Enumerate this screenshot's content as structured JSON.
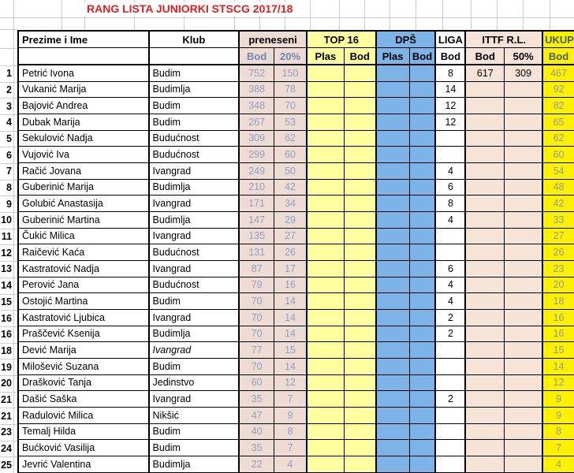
{
  "title": "RANG LISTA JUNIORKI STSCG 2017/18",
  "columns": {
    "name": "Prezime i Ime",
    "club": "Klub",
    "groups": [
      {
        "label": "preneseni",
        "subs": [
          "Bod",
          "20%"
        ]
      },
      {
        "label": "TOP 16",
        "subs": [
          "Plas",
          "Bod"
        ]
      },
      {
        "label": "DPŠ",
        "subs": [
          "Plas",
          "Bod"
        ]
      },
      {
        "label": "LIGA",
        "subs": [
          "Bod"
        ]
      },
      {
        "label": "ITTF R.L.",
        "subs": [
          "Bod",
          "50%"
        ]
      },
      {
        "label": "UKUPNO",
        "subs": [
          "Bod"
        ]
      }
    ]
  },
  "colors": {
    "title_red": "#dc1e1e",
    "preneseni_bg": "#eedbd3",
    "top16_bg": "#ffffa0",
    "dps_bg": "#7db4e8",
    "liga_bg": "#ffffff",
    "ittf_bg": "#f6e3d7",
    "ukupno_bg": "#fdf001",
    "preneseni_text": "#8da2c4",
    "ukupno_text": "#8d9ba8",
    "grid_faint": "#c9cdd1",
    "table_border": "#000000"
  },
  "rows": [
    {
      "rank": "1",
      "name": "Petrić Ivona",
      "club": "Budim",
      "club_italic": false,
      "pren_bod": "752",
      "pren_20": "150",
      "top_plas": "",
      "top_bod": "",
      "dps_plas": "",
      "dps_bod": "",
      "liga": "8",
      "ittf_bod": "617",
      "ittf_50": "309",
      "ukupno": "467"
    },
    {
      "rank": "2",
      "name": "Vukanić Marija",
      "club": "Budimlja",
      "club_italic": false,
      "pren_bod": "388",
      "pren_20": "78",
      "top_plas": "",
      "top_bod": "",
      "dps_plas": "",
      "dps_bod": "",
      "liga": "14",
      "ittf_bod": "",
      "ittf_50": "",
      "ukupno": "92"
    },
    {
      "rank": "3",
      "name": "Bajović Andrea",
      "club": "Budim",
      "club_italic": false,
      "pren_bod": "348",
      "pren_20": "70",
      "top_plas": "",
      "top_bod": "",
      "dps_plas": "",
      "dps_bod": "",
      "liga": "12",
      "ittf_bod": "",
      "ittf_50": "",
      "ukupno": "82"
    },
    {
      "rank": "4",
      "name": "Dubak Marija",
      "club": "Budim",
      "club_italic": false,
      "pren_bod": "267",
      "pren_20": "53",
      "top_plas": "",
      "top_bod": "",
      "dps_plas": "",
      "dps_bod": "",
      "liga": "12",
      "ittf_bod": "",
      "ittf_50": "",
      "ukupno": "65"
    },
    {
      "rank": "5",
      "name": "Sekulović Nadja",
      "club": "Budućnost",
      "club_italic": false,
      "pren_bod": "309",
      "pren_20": "62",
      "top_plas": "",
      "top_bod": "",
      "dps_plas": "",
      "dps_bod": "",
      "liga": "",
      "ittf_bod": "",
      "ittf_50": "",
      "ukupno": "62"
    },
    {
      "rank": "6",
      "name": "Vujović Iva",
      "club": "Budućnost",
      "club_italic": false,
      "pren_bod": "299",
      "pren_20": "60",
      "top_plas": "",
      "top_bod": "",
      "dps_plas": "",
      "dps_bod": "",
      "liga": "",
      "ittf_bod": "",
      "ittf_50": "",
      "ukupno": "60"
    },
    {
      "rank": "7",
      "name": "Račić Jovana",
      "club": "Ivangrad",
      "club_italic": false,
      "pren_bod": "249",
      "pren_20": "50",
      "top_plas": "",
      "top_bod": "",
      "dps_plas": "",
      "dps_bod": "",
      "liga": "4",
      "ittf_bod": "",
      "ittf_50": "",
      "ukupno": "54"
    },
    {
      "rank": "8",
      "name": "Guberinić Marija",
      "club": "Budimlja",
      "club_italic": false,
      "pren_bod": "210",
      "pren_20": "42",
      "top_plas": "",
      "top_bod": "",
      "dps_plas": "",
      "dps_bod": "",
      "liga": "6",
      "ittf_bod": "",
      "ittf_50": "",
      "ukupno": "48"
    },
    {
      "rank": "9",
      "name": "Golubić Anastasija",
      "club": "Ivangrad",
      "club_italic": false,
      "pren_bod": "171",
      "pren_20": "34",
      "top_plas": "",
      "top_bod": "",
      "dps_plas": "",
      "dps_bod": "",
      "liga": "8",
      "ittf_bod": "",
      "ittf_50": "",
      "ukupno": "42"
    },
    {
      "rank": "10",
      "name": "Guberinić Martina",
      "club": "Budimlja",
      "club_italic": false,
      "pren_bod": "147",
      "pren_20": "29",
      "top_plas": "",
      "top_bod": "",
      "dps_plas": "",
      "dps_bod": "",
      "liga": "4",
      "ittf_bod": "",
      "ittf_50": "",
      "ukupno": "33"
    },
    {
      "rank": "11",
      "name": "Čukić Milica",
      "club": "Ivangrad",
      "club_italic": false,
      "pren_bod": "135",
      "pren_20": "27",
      "top_plas": "",
      "top_bod": "",
      "dps_plas": "",
      "dps_bod": "",
      "liga": "",
      "ittf_bod": "",
      "ittf_50": "",
      "ukupno": "27"
    },
    {
      "rank": "12",
      "name": "Raičević Kaća",
      "club": "Budućnost",
      "club_italic": false,
      "pren_bod": "131",
      "pren_20": "26",
      "top_plas": "",
      "top_bod": "",
      "dps_plas": "",
      "dps_bod": "",
      "liga": "",
      "ittf_bod": "",
      "ittf_50": "",
      "ukupno": "26"
    },
    {
      "rank": "13",
      "name": "Kastratović Nadja",
      "club": "Ivangrad",
      "club_italic": false,
      "pren_bod": "87",
      "pren_20": "17",
      "top_plas": "",
      "top_bod": "",
      "dps_plas": "",
      "dps_bod": "",
      "liga": "6",
      "ittf_bod": "",
      "ittf_50": "",
      "ukupno": "23"
    },
    {
      "rank": "14",
      "name": "Perović Jana",
      "club": "Budućnost",
      "club_italic": false,
      "pren_bod": "79",
      "pren_20": "16",
      "top_plas": "",
      "top_bod": "",
      "dps_plas": "",
      "dps_bod": "",
      "liga": "4",
      "ittf_bod": "",
      "ittf_50": "",
      "ukupno": "20"
    },
    {
      "rank": "15",
      "name": "Ostojić Martina",
      "club": "Budim",
      "club_italic": false,
      "pren_bod": "70",
      "pren_20": "14",
      "top_plas": "",
      "top_bod": "",
      "dps_plas": "",
      "dps_bod": "",
      "liga": "4",
      "ittf_bod": "",
      "ittf_50": "",
      "ukupno": "18"
    },
    {
      "rank": "16",
      "name": "Kastratović Ljubica",
      "club": "Ivangrad",
      "club_italic": false,
      "pren_bod": "70",
      "pren_20": "14",
      "top_plas": "",
      "top_bod": "",
      "dps_plas": "",
      "dps_bod": "",
      "liga": "2",
      "ittf_bod": "",
      "ittf_50": "",
      "ukupno": "16"
    },
    {
      "rank": "16",
      "name": "Praščević Ksenija",
      "club": "Budimlja",
      "club_italic": false,
      "pren_bod": "70",
      "pren_20": "14",
      "top_plas": "",
      "top_bod": "",
      "dps_plas": "",
      "dps_bod": "",
      "liga": "2",
      "ittf_bod": "",
      "ittf_50": "",
      "ukupno": "16"
    },
    {
      "rank": "18",
      "name": "Dević Marija",
      "club": "Ivangrad",
      "club_italic": true,
      "pren_bod": "77",
      "pren_20": "15",
      "top_plas": "",
      "top_bod": "",
      "dps_plas": "",
      "dps_bod": "",
      "liga": "",
      "ittf_bod": "",
      "ittf_50": "",
      "ukupno": "15"
    },
    {
      "rank": "19",
      "name": "Milošević Suzana",
      "club": "Budim",
      "club_italic": false,
      "pren_bod": "70",
      "pren_20": "14",
      "top_plas": "",
      "top_bod": "",
      "dps_plas": "",
      "dps_bod": "",
      "liga": "",
      "ittf_bod": "",
      "ittf_50": "",
      "ukupno": "14"
    },
    {
      "rank": "20",
      "name": "Drašković Tanja",
      "club": "Jedinstvo",
      "club_italic": false,
      "pren_bod": "60",
      "pren_20": "12",
      "top_plas": "",
      "top_bod": "",
      "dps_plas": "",
      "dps_bod": "",
      "liga": "",
      "ittf_bod": "",
      "ittf_50": "",
      "ukupno": "12"
    },
    {
      "rank": "21",
      "name": "Dašić Saška",
      "club": "Ivangrad",
      "club_italic": false,
      "pren_bod": "35",
      "pren_20": "7",
      "top_plas": "",
      "top_bod": "",
      "dps_plas": "",
      "dps_bod": "",
      "liga": "2",
      "ittf_bod": "",
      "ittf_50": "",
      "ukupno": "9"
    },
    {
      "rank": "21",
      "name": "Radulović Milica",
      "club": "Nikšić",
      "club_italic": false,
      "pren_bod": "47",
      "pren_20": "9",
      "top_plas": "",
      "top_bod": "",
      "dps_plas": "",
      "dps_bod": "",
      "liga": "",
      "ittf_bod": "",
      "ittf_50": "",
      "ukupno": "9"
    },
    {
      "rank": "23",
      "name": "Temalj Hilda",
      "club": "Budim",
      "club_italic": false,
      "pren_bod": "40",
      "pren_20": "8",
      "top_plas": "",
      "top_bod": "",
      "dps_plas": "",
      "dps_bod": "",
      "liga": "",
      "ittf_bod": "",
      "ittf_50": "",
      "ukupno": "8"
    },
    {
      "rank": "24",
      "name": "Bućković Vasilija",
      "club": "Budim",
      "club_italic": false,
      "pren_bod": "35",
      "pren_20": "7",
      "top_plas": "",
      "top_bod": "",
      "dps_plas": "",
      "dps_bod": "",
      "liga": "",
      "ittf_bod": "",
      "ittf_50": "",
      "ukupno": "7"
    },
    {
      "rank": "25",
      "name": "Jevrić Valentina",
      "club": "Budimlja",
      "club_italic": false,
      "pren_bod": "22",
      "pren_20": "4",
      "top_plas": "",
      "top_bod": "",
      "dps_plas": "",
      "dps_bod": "",
      "liga": "",
      "ittf_bod": "",
      "ittf_50": "",
      "ukupno": "4"
    }
  ]
}
